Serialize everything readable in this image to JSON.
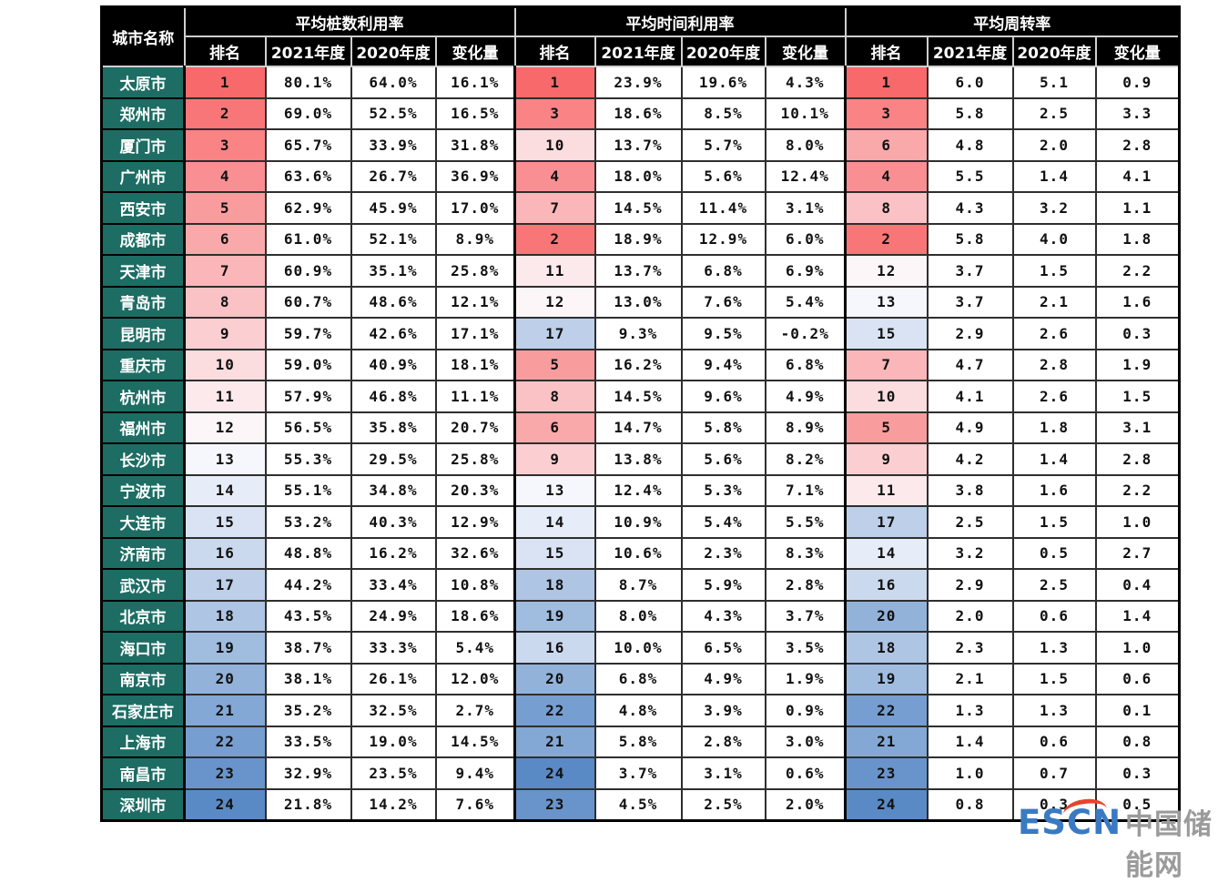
{
  "chart_data": {
    "type": "table",
    "corner_header": "城市名称",
    "groups": [
      {
        "title": "平均桩数利用率",
        "key": "pile"
      },
      {
        "title": "平均时间利用率",
        "key": "time"
      },
      {
        "title": "平均周转率",
        "key": "turnover"
      }
    ],
    "sub_columns": [
      "排名",
      "2021年度",
      "2020年度",
      "变化量"
    ],
    "rank_color_scale": {
      "min_rank": 1,
      "mid_rank": 12.5,
      "max_rank": 24,
      "min_color": "#F8696B",
      "mid_color": "#FCFCFF",
      "max_color": "#5A8AC6"
    },
    "rows": [
      {
        "city": "太原市",
        "pile": {
          "rank": 1,
          "y2021": "80.1%",
          "y2020": "64.0%",
          "change": "16.1%"
        },
        "time": {
          "rank": 1,
          "y2021": "23.9%",
          "y2020": "19.6%",
          "change": "4.3%"
        },
        "turnover": {
          "rank": 1,
          "y2021": "6.0",
          "y2020": "5.1",
          "change": "0.9"
        }
      },
      {
        "city": "郑州市",
        "pile": {
          "rank": 2,
          "y2021": "69.0%",
          "y2020": "52.5%",
          "change": "16.5%"
        },
        "time": {
          "rank": 3,
          "y2021": "18.6%",
          "y2020": "8.5%",
          "change": "10.1%"
        },
        "turnover": {
          "rank": 3,
          "y2021": "5.8",
          "y2020": "2.5",
          "change": "3.3"
        }
      },
      {
        "city": "厦门市",
        "pile": {
          "rank": 3,
          "y2021": "65.7%",
          "y2020": "33.9%",
          "change": "31.8%"
        },
        "time": {
          "rank": 10,
          "y2021": "13.7%",
          "y2020": "5.7%",
          "change": "8.0%"
        },
        "turnover": {
          "rank": 6,
          "y2021": "4.8",
          "y2020": "2.0",
          "change": "2.8"
        }
      },
      {
        "city": "广州市",
        "pile": {
          "rank": 4,
          "y2021": "63.6%",
          "y2020": "26.7%",
          "change": "36.9%"
        },
        "time": {
          "rank": 4,
          "y2021": "18.0%",
          "y2020": "5.6%",
          "change": "12.4%"
        },
        "turnover": {
          "rank": 4,
          "y2021": "5.5",
          "y2020": "1.4",
          "change": "4.1"
        }
      },
      {
        "city": "西安市",
        "pile": {
          "rank": 5,
          "y2021": "62.9%",
          "y2020": "45.9%",
          "change": "17.0%"
        },
        "time": {
          "rank": 7,
          "y2021": "14.5%",
          "y2020": "11.4%",
          "change": "3.1%"
        },
        "turnover": {
          "rank": 8,
          "y2021": "4.3",
          "y2020": "3.2",
          "change": "1.1"
        }
      },
      {
        "city": "成都市",
        "pile": {
          "rank": 6,
          "y2021": "61.0%",
          "y2020": "52.1%",
          "change": "8.9%"
        },
        "time": {
          "rank": 2,
          "y2021": "18.9%",
          "y2020": "12.9%",
          "change": "6.0%"
        },
        "turnover": {
          "rank": 2,
          "y2021": "5.8",
          "y2020": "4.0",
          "change": "1.8"
        }
      },
      {
        "city": "天津市",
        "pile": {
          "rank": 7,
          "y2021": "60.9%",
          "y2020": "35.1%",
          "change": "25.8%"
        },
        "time": {
          "rank": 11,
          "y2021": "13.7%",
          "y2020": "6.8%",
          "change": "6.9%"
        },
        "turnover": {
          "rank": 12,
          "y2021": "3.7",
          "y2020": "1.5",
          "change": "2.2"
        }
      },
      {
        "city": "青岛市",
        "pile": {
          "rank": 8,
          "y2021": "60.7%",
          "y2020": "48.6%",
          "change": "12.1%"
        },
        "time": {
          "rank": 12,
          "y2021": "13.0%",
          "y2020": "7.6%",
          "change": "5.4%"
        },
        "turnover": {
          "rank": 13,
          "y2021": "3.7",
          "y2020": "2.1",
          "change": "1.6"
        }
      },
      {
        "city": "昆明市",
        "pile": {
          "rank": 9,
          "y2021": "59.7%",
          "y2020": "42.6%",
          "change": "17.1%"
        },
        "time": {
          "rank": 17,
          "y2021": "9.3%",
          "y2020": "9.5%",
          "change": "-0.2%"
        },
        "turnover": {
          "rank": 15,
          "y2021": "2.9",
          "y2020": "2.6",
          "change": "0.3"
        }
      },
      {
        "city": "重庆市",
        "pile": {
          "rank": 10,
          "y2021": "59.0%",
          "y2020": "40.9%",
          "change": "18.1%"
        },
        "time": {
          "rank": 5,
          "y2021": "16.2%",
          "y2020": "9.4%",
          "change": "6.8%"
        },
        "turnover": {
          "rank": 7,
          "y2021": "4.7",
          "y2020": "2.8",
          "change": "1.9"
        }
      },
      {
        "city": "杭州市",
        "pile": {
          "rank": 11,
          "y2021": "57.9%",
          "y2020": "46.8%",
          "change": "11.1%"
        },
        "time": {
          "rank": 8,
          "y2021": "14.5%",
          "y2020": "9.6%",
          "change": "4.9%"
        },
        "turnover": {
          "rank": 10,
          "y2021": "4.1",
          "y2020": "2.6",
          "change": "1.5"
        }
      },
      {
        "city": "福州市",
        "pile": {
          "rank": 12,
          "y2021": "56.5%",
          "y2020": "35.8%",
          "change": "20.7%"
        },
        "time": {
          "rank": 6,
          "y2021": "14.7%",
          "y2020": "5.8%",
          "change": "8.9%"
        },
        "turnover": {
          "rank": 5,
          "y2021": "4.9",
          "y2020": "1.8",
          "change": "3.1"
        }
      },
      {
        "city": "长沙市",
        "pile": {
          "rank": 13,
          "y2021": "55.3%",
          "y2020": "29.5%",
          "change": "25.8%"
        },
        "time": {
          "rank": 9,
          "y2021": "13.8%",
          "y2020": "5.6%",
          "change": "8.2%"
        },
        "turnover": {
          "rank": 9,
          "y2021": "4.2",
          "y2020": "1.4",
          "change": "2.8"
        }
      },
      {
        "city": "宁波市",
        "pile": {
          "rank": 14,
          "y2021": "55.1%",
          "y2020": "34.8%",
          "change": "20.3%"
        },
        "time": {
          "rank": 13,
          "y2021": "12.4%",
          "y2020": "5.3%",
          "change": "7.1%"
        },
        "turnover": {
          "rank": 11,
          "y2021": "3.8",
          "y2020": "1.6",
          "change": "2.2"
        }
      },
      {
        "city": "大连市",
        "pile": {
          "rank": 15,
          "y2021": "53.2%",
          "y2020": "40.3%",
          "change": "12.9%"
        },
        "time": {
          "rank": 14,
          "y2021": "10.9%",
          "y2020": "5.4%",
          "change": "5.5%"
        },
        "turnover": {
          "rank": 17,
          "y2021": "2.5",
          "y2020": "1.5",
          "change": "1.0"
        }
      },
      {
        "city": "济南市",
        "pile": {
          "rank": 16,
          "y2021": "48.8%",
          "y2020": "16.2%",
          "change": "32.6%"
        },
        "time": {
          "rank": 15,
          "y2021": "10.6%",
          "y2020": "2.3%",
          "change": "8.3%"
        },
        "turnover": {
          "rank": 14,
          "y2021": "3.2",
          "y2020": "0.5",
          "change": "2.7"
        }
      },
      {
        "city": "武汉市",
        "pile": {
          "rank": 17,
          "y2021": "44.2%",
          "y2020": "33.4%",
          "change": "10.8%"
        },
        "time": {
          "rank": 18,
          "y2021": "8.7%",
          "y2020": "5.9%",
          "change": "2.8%"
        },
        "turnover": {
          "rank": 16,
          "y2021": "2.9",
          "y2020": "2.5",
          "change": "0.4"
        }
      },
      {
        "city": "北京市",
        "pile": {
          "rank": 18,
          "y2021": "43.5%",
          "y2020": "24.9%",
          "change": "18.6%"
        },
        "time": {
          "rank": 19,
          "y2021": "8.0%",
          "y2020": "4.3%",
          "change": "3.7%"
        },
        "turnover": {
          "rank": 20,
          "y2021": "2.0",
          "y2020": "0.6",
          "change": "1.4"
        }
      },
      {
        "city": "海口市",
        "pile": {
          "rank": 19,
          "y2021": "38.7%",
          "y2020": "33.3%",
          "change": "5.4%"
        },
        "time": {
          "rank": 16,
          "y2021": "10.0%",
          "y2020": "6.5%",
          "change": "3.5%"
        },
        "turnover": {
          "rank": 18,
          "y2021": "2.3",
          "y2020": "1.3",
          "change": "1.0"
        }
      },
      {
        "city": "南京市",
        "pile": {
          "rank": 20,
          "y2021": "38.1%",
          "y2020": "26.1%",
          "change": "12.0%"
        },
        "time": {
          "rank": 20,
          "y2021": "6.8%",
          "y2020": "4.9%",
          "change": "1.9%"
        },
        "turnover": {
          "rank": 19,
          "y2021": "2.1",
          "y2020": "1.5",
          "change": "0.6"
        }
      },
      {
        "city": "石家庄市",
        "pile": {
          "rank": 21,
          "y2021": "35.2%",
          "y2020": "32.5%",
          "change": "2.7%"
        },
        "time": {
          "rank": 22,
          "y2021": "4.8%",
          "y2020": "3.9%",
          "change": "0.9%"
        },
        "turnover": {
          "rank": 22,
          "y2021": "1.3",
          "y2020": "1.3",
          "change": "0.1"
        }
      },
      {
        "city": "上海市",
        "pile": {
          "rank": 22,
          "y2021": "33.5%",
          "y2020": "19.0%",
          "change": "14.5%"
        },
        "time": {
          "rank": 21,
          "y2021": "5.8%",
          "y2020": "2.8%",
          "change": "3.0%"
        },
        "turnover": {
          "rank": 21,
          "y2021": "1.4",
          "y2020": "0.6",
          "change": "0.8"
        }
      },
      {
        "city": "南昌市",
        "pile": {
          "rank": 23,
          "y2021": "32.9%",
          "y2020": "23.5%",
          "change": "9.4%"
        },
        "time": {
          "rank": 24,
          "y2021": "3.7%",
          "y2020": "3.1%",
          "change": "0.6%"
        },
        "turnover": {
          "rank": 23,
          "y2021": "1.0",
          "y2020": "0.7",
          "change": "0.3"
        }
      },
      {
        "city": "深圳市",
        "pile": {
          "rank": 24,
          "y2021": "21.8%",
          "y2020": "14.2%",
          "change": "7.6%"
        },
        "time": {
          "rank": 23,
          "y2021": "4.5%",
          "y2020": "2.5%",
          "change": "2.0%"
        },
        "turnover": {
          "rank": 24,
          "y2021": "0.8",
          "y2020": "0.3",
          "change": "0.5"
        }
      }
    ]
  },
  "colors": {
    "header_bg": "#000000",
    "header_text": "#FFFFFF",
    "city_bg": "#1D6D64",
    "city_text": "#FFFFFF",
    "logo_blue": "#3A7AC2",
    "site_gray": "#9B9B9B",
    "swoosh_red": "#E8432F"
  },
  "watermark": {
    "logo_text": "ESCN",
    "site_name": "中国储能网"
  }
}
